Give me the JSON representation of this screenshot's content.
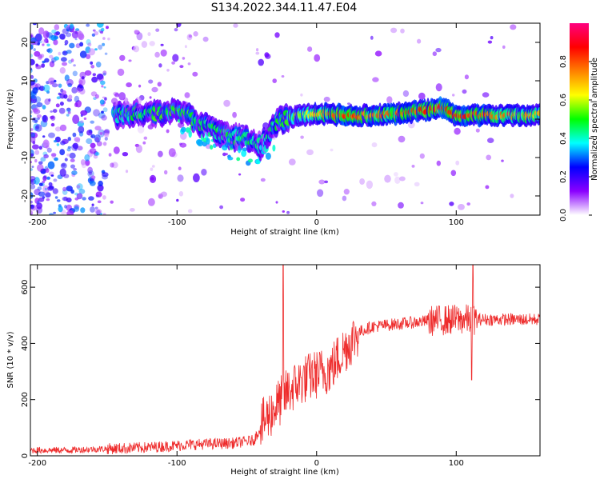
{
  "title": "S134.2022.344.11.47.E04",
  "spectrogram": {
    "type": "heatmap",
    "xlabel": "Height of straight line (km)",
    "ylabel": "Frequency (Hz)",
    "xlim": [
      -205,
      160
    ],
    "ylim": [
      -25,
      25
    ],
    "xticks": [
      -200,
      -100,
      0,
      100
    ],
    "yticks": [
      -20,
      -10,
      0,
      10,
      20
    ],
    "colorbar": {
      "label": "Normalized spectral amplitude",
      "range": [
        0,
        1
      ],
      "ticks": [
        "0.0",
        "0.2",
        "0.4",
        "0.6",
        "0.8"
      ],
      "colors": [
        "#ffffff",
        "#8a00ff",
        "#0000ff",
        "#00ffff",
        "#00ff00",
        "#ffff00",
        "#ff8000",
        "#ff0000",
        "#ff0080"
      ]
    },
    "ridge": [
      {
        "x": -145,
        "y": 1.0,
        "a": 0.45
      },
      {
        "x": -130,
        "y": 1.5,
        "a": 0.45
      },
      {
        "x": -115,
        "y": 1.5,
        "a": 0.5
      },
      {
        "x": -100,
        "y": 2.0,
        "a": 0.5
      },
      {
        "x": -90,
        "y": 0.5,
        "a": 0.5
      },
      {
        "x": -80,
        "y": -2.0,
        "a": 0.45
      },
      {
        "x": -70,
        "y": -3.5,
        "a": 0.45
      },
      {
        "x": -60,
        "y": -4.5,
        "a": 0.45
      },
      {
        "x": -50,
        "y": -5.5,
        "a": 0.45
      },
      {
        "x": -40,
        "y": -7.0,
        "a": 0.4
      },
      {
        "x": -30,
        "y": -1.0,
        "a": 0.45
      },
      {
        "x": -20,
        "y": 0.5,
        "a": 0.55
      },
      {
        "x": -10,
        "y": 1.0,
        "a": 0.6
      },
      {
        "x": 0,
        "y": 1.5,
        "a": 0.7
      },
      {
        "x": 20,
        "y": 1.0,
        "a": 0.85
      },
      {
        "x": 40,
        "y": 1.0,
        "a": 0.75
      },
      {
        "x": 60,
        "y": 1.5,
        "a": 0.8
      },
      {
        "x": 80,
        "y": 2.5,
        "a": 0.85
      },
      {
        "x": 90,
        "y": 3.0,
        "a": 0.9
      },
      {
        "x": 100,
        "y": 1.0,
        "a": 0.85
      },
      {
        "x": 120,
        "y": 1.0,
        "a": 0.8
      },
      {
        "x": 140,
        "y": 1.0,
        "a": 0.75
      },
      {
        "x": 160,
        "y": 1.0,
        "a": 0.7
      }
    ]
  },
  "snr": {
    "type": "line",
    "xlabel": "Height of straight line (km)",
    "ylabel": "SNR (10 * v/v)",
    "xlim": [
      -205,
      160
    ],
    "ylim": [
      0,
      680
    ],
    "xticks": [
      -200,
      -100,
      0,
      100
    ],
    "yticks": [
      0,
      200,
      400,
      600
    ],
    "color": "#ee2b2b",
    "trend": [
      {
        "x": -205,
        "y": 20
      },
      {
        "x": -180,
        "y": 20
      },
      {
        "x": -150,
        "y": 25
      },
      {
        "x": -120,
        "y": 30
      },
      {
        "x": -90,
        "y": 40
      },
      {
        "x": -60,
        "y": 45
      },
      {
        "x": -45,
        "y": 55
      },
      {
        "x": -38,
        "y": 120
      },
      {
        "x": -30,
        "y": 170
      },
      {
        "x": -20,
        "y": 230
      },
      {
        "x": -10,
        "y": 270
      },
      {
        "x": 0,
        "y": 290
      },
      {
        "x": 10,
        "y": 310
      },
      {
        "x": 20,
        "y": 380
      },
      {
        "x": 30,
        "y": 440
      },
      {
        "x": 40,
        "y": 460
      },
      {
        "x": 60,
        "y": 470
      },
      {
        "x": 80,
        "y": 480
      },
      {
        "x": 100,
        "y": 485
      },
      {
        "x": 130,
        "y": 485
      },
      {
        "x": 160,
        "y": 485
      }
    ],
    "spikes": [
      {
        "x": -24,
        "y": 680
      },
      {
        "x": 112,
        "y": 680
      },
      {
        "x": 111,
        "y": 270
      }
    ]
  }
}
